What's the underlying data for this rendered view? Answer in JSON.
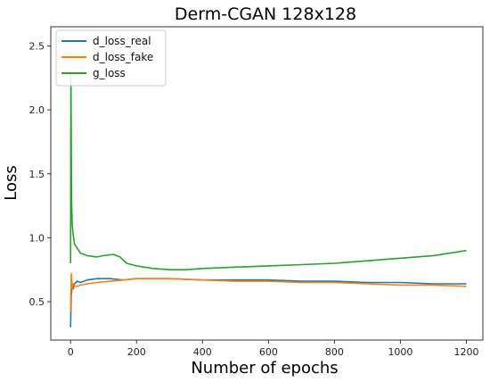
{
  "chart_data": {
    "type": "line",
    "title": "Derm-CGAN 128x128",
    "xlabel": "Number of epochs",
    "ylabel": "Loss",
    "xlim": [
      -60,
      1250
    ],
    "ylim": [
      0.2,
      2.65
    ],
    "xticks": [
      0,
      200,
      400,
      600,
      800,
      1000,
      1200
    ],
    "yticks": [
      0.5,
      1.0,
      1.5,
      2.0,
      2.5
    ],
    "ytick_labels": [
      "0.5",
      "1.0",
      "1.5",
      "2.0",
      "2.5"
    ],
    "grid": false,
    "legend_position": "top-left",
    "series": [
      {
        "name": "d_loss_real",
        "color": "#1f77b4",
        "x": [
          0,
          2,
          5,
          8,
          12,
          20,
          30,
          50,
          80,
          120,
          160,
          200,
          300,
          400,
          500,
          600,
          700,
          800,
          900,
          1000,
          1100,
          1200
        ],
        "y": [
          0.3,
          0.55,
          0.62,
          0.6,
          0.64,
          0.66,
          0.65,
          0.67,
          0.68,
          0.68,
          0.67,
          0.68,
          0.68,
          0.67,
          0.67,
          0.67,
          0.66,
          0.66,
          0.65,
          0.65,
          0.64,
          0.64
        ]
      },
      {
        "name": "d_loss_fake",
        "color": "#ff7f0e",
        "x": [
          0,
          2,
          5,
          8,
          12,
          20,
          30,
          50,
          80,
          120,
          160,
          200,
          300,
          400,
          500,
          600,
          700,
          800,
          900,
          1000,
          1100,
          1200
        ],
        "y": [
          0.42,
          0.72,
          0.6,
          0.64,
          0.62,
          0.62,
          0.63,
          0.64,
          0.65,
          0.66,
          0.67,
          0.68,
          0.68,
          0.67,
          0.66,
          0.66,
          0.65,
          0.65,
          0.64,
          0.63,
          0.63,
          0.62
        ]
      },
      {
        "name": "g_loss",
        "color": "#2ca02c",
        "x": [
          0,
          1,
          2,
          3,
          5,
          8,
          12,
          20,
          30,
          50,
          80,
          100,
          130,
          150,
          170,
          200,
          250,
          300,
          350,
          400,
          500,
          600,
          700,
          800,
          900,
          1000,
          1100,
          1150,
          1200
        ],
        "y": [
          0.8,
          2.3,
          1.75,
          1.3,
          1.1,
          1.02,
          0.95,
          0.92,
          0.88,
          0.86,
          0.85,
          0.86,
          0.87,
          0.85,
          0.8,
          0.78,
          0.76,
          0.75,
          0.75,
          0.76,
          0.77,
          0.78,
          0.79,
          0.8,
          0.82,
          0.84,
          0.86,
          0.88,
          0.9
        ]
      }
    ]
  }
}
